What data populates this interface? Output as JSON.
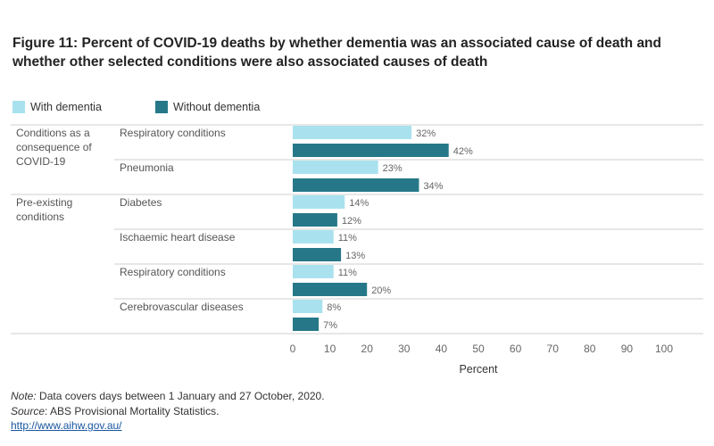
{
  "title": "Figure 11: Percent of COVID-19 deaths by whether dementia was an associated cause of death and whether other selected conditions were also associated causes of death",
  "legend": {
    "items": [
      {
        "label": "With dementia",
        "color": "#a9e2ee"
      },
      {
        "label": "Without dementia",
        "color": "#267888"
      }
    ]
  },
  "notes": {
    "note_label": "Note:",
    "note_text": " Data covers days between 1 January and 27 October, 2020.",
    "source_label": "Source",
    "source_text": ": ABS Provisional Mortality Statistics.",
    "url": "http://www.aihw.gov.au/"
  },
  "chart_data": {
    "type": "bar",
    "orientation": "horizontal",
    "title": "Figure 11: Percent of COVID-19 deaths by whether dementia was an associated cause of death and whether other selected conditions were also associated causes of death",
    "xlabel": "Percent",
    "xlim": [
      0,
      100
    ],
    "xticks": [
      0,
      10,
      20,
      30,
      40,
      50,
      60,
      70,
      80,
      90,
      100
    ],
    "value_suffix": "%",
    "grid": false,
    "legend_position": "top-left",
    "groups": [
      {
        "label": "Conditions as a consequence of COVID-19",
        "categories": [
          "Respiratory conditions",
          "Pneumonia"
        ]
      },
      {
        "label": "Pre-existing conditions",
        "categories": [
          "Diabetes",
          "Ischaemic heart disease",
          "Respiratory conditions",
          "Cerebrovascular diseases"
        ]
      }
    ],
    "categories": [
      "Respiratory conditions",
      "Pneumonia",
      "Diabetes",
      "Ischaemic heart disease",
      "Respiratory conditions",
      "Cerebrovascular diseases"
    ],
    "series": [
      {
        "name": "With dementia",
        "color": "#a9e2ee",
        "values": [
          32,
          23,
          14,
          11,
          11,
          8
        ]
      },
      {
        "name": "Without dementia",
        "color": "#267888",
        "values": [
          42,
          34,
          12,
          13,
          20,
          7
        ]
      }
    ]
  }
}
